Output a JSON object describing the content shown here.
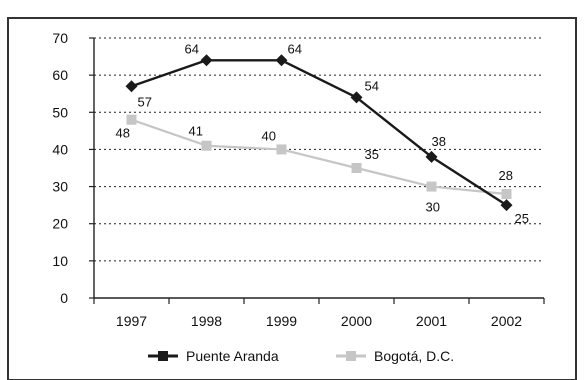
{
  "chart_data": {
    "type": "line",
    "categories": [
      "1997",
      "1998",
      "1999",
      "2000",
      "2001",
      "2002"
    ],
    "ylim": [
      0,
      70
    ],
    "yticks": [
      0,
      10,
      20,
      30,
      40,
      50,
      60,
      70
    ],
    "grid": true,
    "legend_position": "bottom",
    "series": [
      {
        "name": "Puente Aranda",
        "values": [
          57,
          64,
          64,
          54,
          38,
          25
        ],
        "data_labels": [
          "57",
          "64",
          "64",
          "54",
          "38",
          "25"
        ],
        "color": "#1a1a1a",
        "marker": "diamond"
      },
      {
        "name": "Bogotá, D.C.",
        "values": [
          48,
          41,
          40,
          35,
          30,
          28
        ],
        "data_labels": [
          "48",
          "41",
          "40",
          "35",
          "30",
          "28"
        ],
        "color": "#c6c6c6",
        "marker": "square"
      }
    ]
  }
}
